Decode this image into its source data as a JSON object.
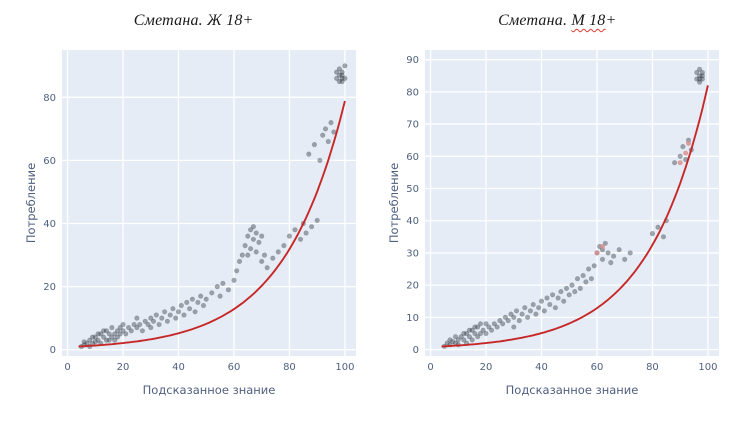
{
  "page": {
    "background": "#ffffff"
  },
  "chart_data": [
    {
      "type": "scatter",
      "title": "Сметана. Ж 18+",
      "title_parts": [
        {
          "text": "Сметана. Ж 18+",
          "wavy": false
        }
      ],
      "xlabel": "Подсказанное знание",
      "ylabel": "Потребление",
      "x_ticks": [
        0,
        20,
        40,
        60,
        80,
        100
      ],
      "y_ticks": [
        0,
        20,
        40,
        60,
        80
      ],
      "x_range": [
        -2,
        104
      ],
      "y_range": [
        -2,
        95
      ],
      "grid": true,
      "plot_bg": "#e5ecf6",
      "grid_color": "#ffffff",
      "tick_color": "#506080",
      "point_color": "#2f3640",
      "point_opacity": 0.42,
      "highlight_color": "#d98c8c",
      "trend_color": "#c62828",
      "trend": {
        "type": "exponential",
        "a": 0.85,
        "b": 0.0453,
        "x_min": 4,
        "x_max": 100
      },
      "points": [
        [
          5,
          1
        ],
        [
          6,
          1.5
        ],
        [
          6,
          2.5
        ],
        [
          7,
          2
        ],
        [
          8,
          1
        ],
        [
          8,
          3
        ],
        [
          9,
          2
        ],
        [
          9,
          4
        ],
        [
          10,
          2.5
        ],
        [
          10,
          4
        ],
        [
          11,
          3
        ],
        [
          11,
          5
        ],
        [
          12,
          2
        ],
        [
          12,
          5
        ],
        [
          13,
          4
        ],
        [
          13,
          6
        ],
        [
          14,
          3
        ],
        [
          14,
          6
        ],
        [
          15,
          5
        ],
        [
          15,
          3
        ],
        [
          16,
          4
        ],
        [
          16,
          7
        ],
        [
          17,
          5
        ],
        [
          17,
          3
        ],
        [
          18,
          4
        ],
        [
          18,
          6
        ],
        [
          19,
          5
        ],
        [
          19,
          7
        ],
        [
          20,
          6
        ],
        [
          20,
          8
        ],
        [
          21,
          5
        ],
        [
          22,
          7
        ],
        [
          23,
          6
        ],
        [
          24,
          8
        ],
        [
          25,
          7
        ],
        [
          25,
          10
        ],
        [
          26,
          8
        ],
        [
          27,
          6
        ],
        [
          28,
          9
        ],
        [
          29,
          8
        ],
        [
          30,
          10
        ],
        [
          30,
          7
        ],
        [
          31,
          9
        ],
        [
          32,
          11
        ],
        [
          33,
          8
        ],
        [
          34,
          10
        ],
        [
          35,
          12
        ],
        [
          36,
          9
        ],
        [
          37,
          11
        ],
        [
          38,
          13
        ],
        [
          39,
          10
        ],
        [
          40,
          12
        ],
        [
          41,
          14
        ],
        [
          42,
          11
        ],
        [
          43,
          15
        ],
        [
          44,
          13
        ],
        [
          45,
          16
        ],
        [
          46,
          12
        ],
        [
          47,
          15
        ],
        [
          48,
          17
        ],
        [
          49,
          14
        ],
        [
          50,
          16
        ],
        [
          52,
          18
        ],
        [
          54,
          20
        ],
        [
          55,
          17
        ],
        [
          56,
          21
        ],
        [
          58,
          19
        ],
        [
          60,
          22
        ],
        [
          61,
          25
        ],
        [
          62,
          28
        ],
        [
          63,
          30
        ],
        [
          64,
          33
        ],
        [
          65,
          36
        ],
        [
          65,
          30
        ],
        [
          66,
          38
        ],
        [
          66,
          32
        ],
        [
          67,
          35
        ],
        [
          67,
          39
        ],
        [
          68,
          37
        ],
        [
          68,
          31
        ],
        [
          69,
          34
        ],
        [
          70,
          36
        ],
        [
          70,
          28
        ],
        [
          71,
          30
        ],
        [
          72,
          26
        ],
        [
          74,
          29
        ],
        [
          76,
          31
        ],
        [
          78,
          33
        ],
        [
          80,
          36
        ],
        [
          82,
          38
        ],
        [
          84,
          35
        ],
        [
          85,
          40
        ],
        [
          86,
          37
        ],
        [
          88,
          39
        ],
        [
          90,
          41
        ],
        [
          87,
          62
        ],
        [
          89,
          65
        ],
        [
          91,
          60
        ],
        [
          92,
          68
        ],
        [
          93,
          70
        ],
        [
          94,
          66
        ],
        [
          95,
          72
        ],
        [
          96,
          69
        ],
        [
          97,
          86
        ],
        [
          97,
          88
        ],
        [
          98,
          85
        ],
        [
          98,
          87
        ],
        [
          98,
          89
        ],
        [
          99,
          86
        ],
        [
          99,
          88
        ],
        [
          99,
          87
        ],
        [
          100,
          90
        ],
        [
          100,
          86
        ],
        [
          99,
          85
        ]
      ],
      "points_highlight": []
    },
    {
      "type": "scatter",
      "title": "Сметана. М 18+",
      "title_parts": [
        {
          "text": "Сметана. ",
          "wavy": false
        },
        {
          "text": "М 18",
          "wavy": true
        },
        {
          "text": "+",
          "wavy": false
        }
      ],
      "xlabel": "Подсказанное знание",
      "ylabel": "Потребление",
      "x_ticks": [
        0,
        20,
        40,
        60,
        80,
        100
      ],
      "y_ticks": [
        0,
        10,
        20,
        30,
        40,
        50,
        60,
        70,
        80,
        90
      ],
      "x_range": [
        -2,
        104
      ],
      "y_range": [
        -2,
        93
      ],
      "grid": true,
      "plot_bg": "#e5ecf6",
      "grid_color": "#ffffff",
      "tick_color": "#506080",
      "point_color": "#2f3640",
      "point_opacity": 0.42,
      "highlight_color": "#d98c8c",
      "trend_color": "#c62828",
      "trend": {
        "type": "exponential",
        "a": 0.8,
        "b": 0.0463,
        "x_min": 4,
        "x_max": 100
      },
      "points": [
        [
          5,
          1
        ],
        [
          6,
          2
        ],
        [
          7,
          1.5
        ],
        [
          7,
          3
        ],
        [
          8,
          2.5
        ],
        [
          9,
          2
        ],
        [
          9,
          4
        ],
        [
          10,
          3
        ],
        [
          10,
          1.5
        ],
        [
          11,
          4
        ],
        [
          12,
          3
        ],
        [
          12,
          5
        ],
        [
          13,
          2
        ],
        [
          13,
          5
        ],
        [
          14,
          4
        ],
        [
          14,
          6
        ],
        [
          15,
          3
        ],
        [
          15,
          6
        ],
        [
          16,
          5
        ],
        [
          16,
          7
        ],
        [
          17,
          4
        ],
        [
          17,
          7
        ],
        [
          18,
          5
        ],
        [
          18,
          8
        ],
        [
          19,
          6
        ],
        [
          20,
          5
        ],
        [
          20,
          8
        ],
        [
          21,
          7
        ],
        [
          22,
          6
        ],
        [
          23,
          8
        ],
        [
          24,
          7
        ],
        [
          25,
          9
        ],
        [
          26,
          8
        ],
        [
          27,
          10
        ],
        [
          28,
          9
        ],
        [
          29,
          11
        ],
        [
          30,
          10
        ],
        [
          30,
          7
        ],
        [
          31,
          12
        ],
        [
          32,
          9
        ],
        [
          33,
          11
        ],
        [
          34,
          13
        ],
        [
          35,
          10
        ],
        [
          36,
          12
        ],
        [
          37,
          14
        ],
        [
          38,
          11
        ],
        [
          39,
          13
        ],
        [
          40,
          15
        ],
        [
          41,
          12
        ],
        [
          42,
          16
        ],
        [
          43,
          14
        ],
        [
          44,
          17
        ],
        [
          45,
          13
        ],
        [
          46,
          16
        ],
        [
          47,
          18
        ],
        [
          48,
          15
        ],
        [
          49,
          19
        ],
        [
          50,
          17
        ],
        [
          51,
          20
        ],
        [
          52,
          18
        ],
        [
          53,
          22
        ],
        [
          54,
          19
        ],
        [
          55,
          23
        ],
        [
          56,
          21
        ],
        [
          57,
          25
        ],
        [
          58,
          22
        ],
        [
          59,
          26
        ],
        [
          60,
          30
        ],
        [
          61,
          32
        ],
        [
          62,
          31
        ],
        [
          62,
          28
        ],
        [
          63,
          33
        ],
        [
          64,
          30
        ],
        [
          65,
          27
        ],
        [
          66,
          29
        ],
        [
          68,
          31
        ],
        [
          70,
          28
        ],
        [
          72,
          30
        ],
        [
          80,
          36
        ],
        [
          82,
          38
        ],
        [
          84,
          35
        ],
        [
          85,
          40
        ],
        [
          88,
          58
        ],
        [
          90,
          60
        ],
        [
          91,
          63
        ],
        [
          92,
          59
        ],
        [
          93,
          65
        ],
        [
          94,
          62
        ],
        [
          96,
          84
        ],
        [
          96,
          86
        ],
        [
          97,
          83
        ],
        [
          97,
          85
        ],
        [
          97,
          87
        ],
        [
          98,
          84
        ],
        [
          98,
          86
        ],
        [
          98,
          85
        ],
        [
          97,
          84
        ]
      ],
      "points_highlight": [
        [
          90,
          58
        ],
        [
          92,
          61
        ],
        [
          93,
          64
        ],
        [
          60,
          30
        ],
        [
          62,
          32
        ]
      ]
    }
  ]
}
